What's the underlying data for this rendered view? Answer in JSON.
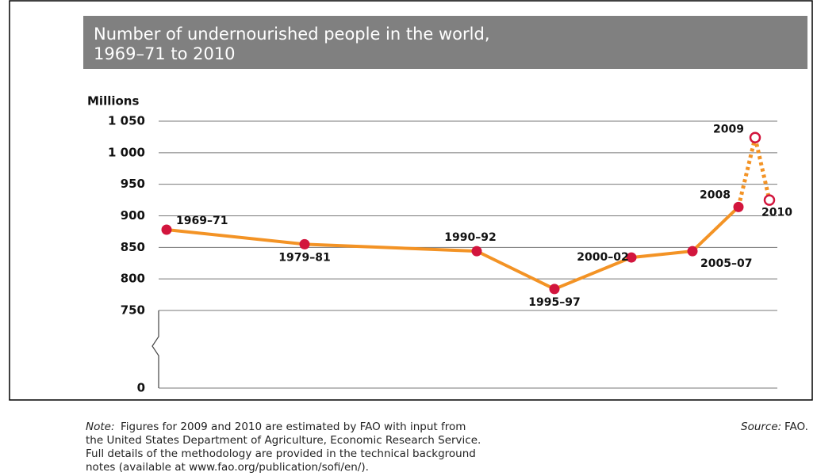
{
  "chart_data": {
    "type": "line",
    "title_lines": [
      "Number of undernourished people in the world,",
      "1969–71 to 2010"
    ],
    "y_label": "Millions",
    "categories": [
      "1969–71",
      "1979–81",
      "1990–92",
      "1995–97",
      "2000–02",
      "2005–07",
      "2008",
      "2009",
      "2010"
    ],
    "values": [
      878,
      855,
      844,
      784,
      834,
      844,
      914,
      1024,
      925
    ],
    "estimated": [
      false,
      false,
      false,
      false,
      false,
      false,
      false,
      true,
      true
    ],
    "line_color": "#f39325",
    "marker_color": "#d2153d",
    "ylim": [
      750,
      1050
    ],
    "yticks": [
      {
        "value": 1050,
        "label": "1 050"
      },
      {
        "value": 1000,
        "label": "1 000"
      },
      950,
      900,
      850,
      800,
      750,
      0
    ],
    "axis_break": true,
    "grid": true,
    "note_label": "Note:",
    "note_lines": [
      "Figures for 2009 and 2010 are estimated by FAO with input from",
      "the United States Department of Agriculture, Economic Research Service.",
      "Full details of the methodology are provided in the technical background",
      "notes (available at www.fao.org/publication/sofi/en/)."
    ],
    "source_label": "Source:",
    "source": "FAO."
  }
}
